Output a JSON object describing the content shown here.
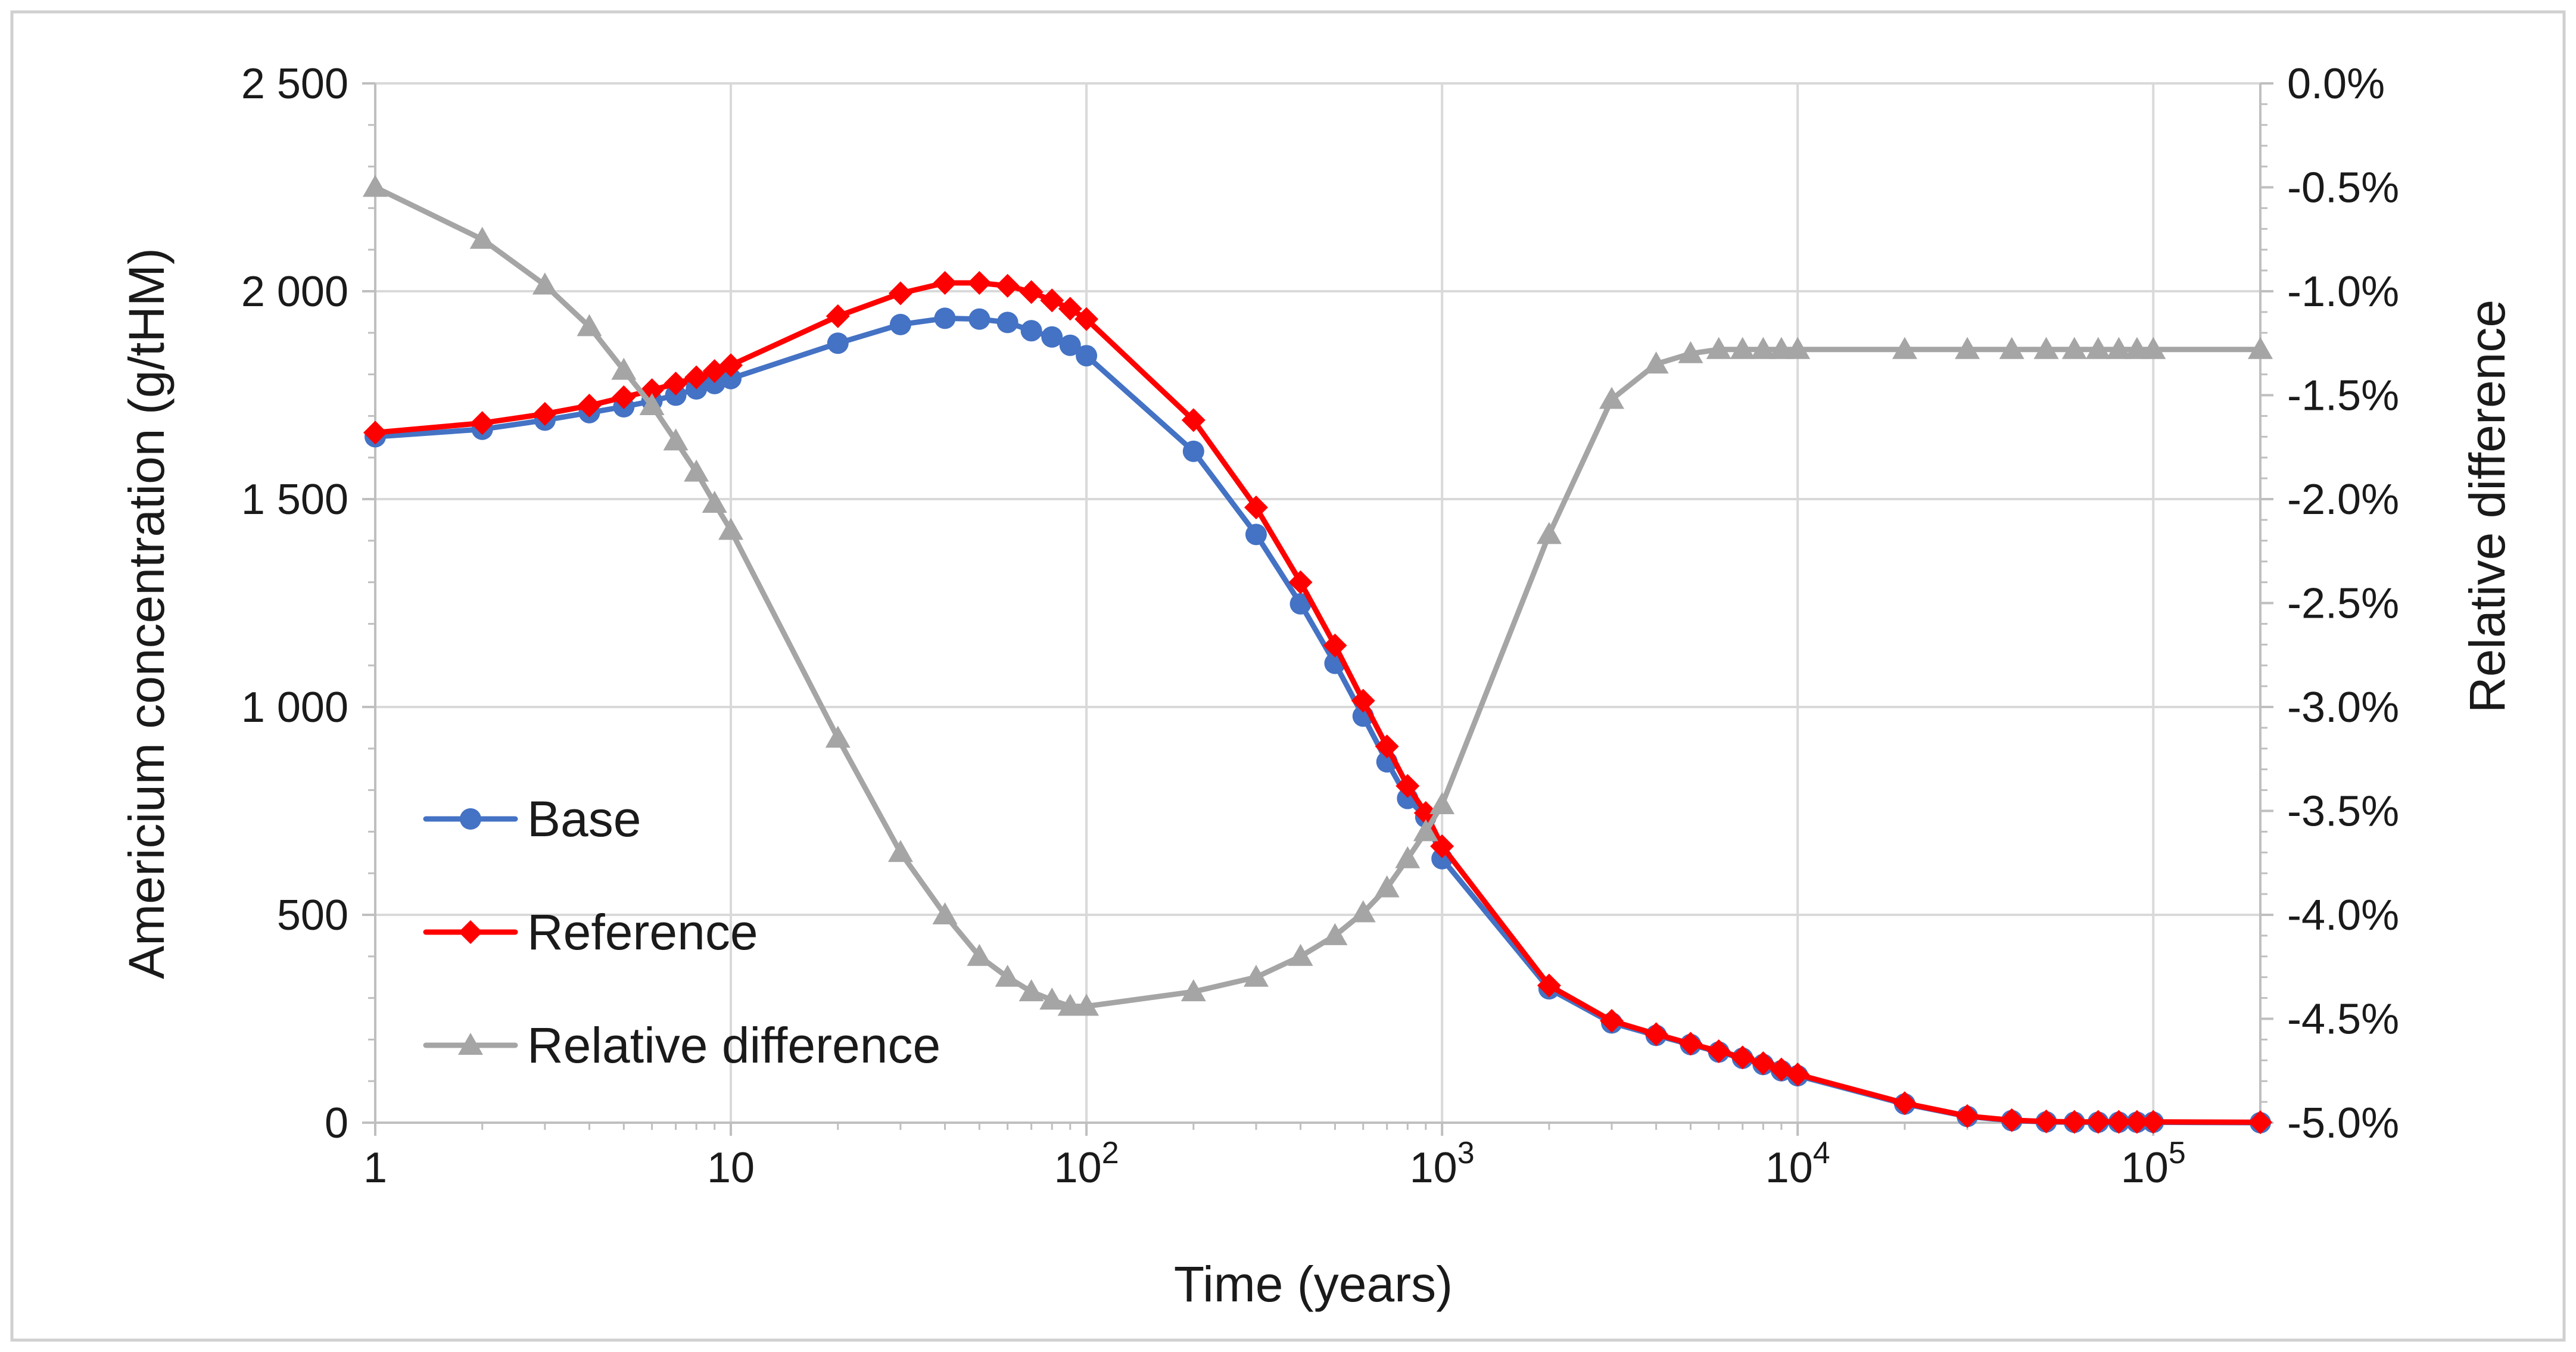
{
  "chart_data": {
    "type": "line",
    "title": "",
    "xlabel": "Time (years)",
    "ylabel": "Americium concentration (g/tHM)",
    "y2label": "Relative difference",
    "xscale": "log",
    "xlim": [
      1,
      200000
    ],
    "ylim": [
      0,
      2500
    ],
    "y2lim": [
      -5.0,
      0.0
    ],
    "grid": "major vertical and horizontal",
    "legend_position": "left-center",
    "x_ticks": [
      {
        "value": 1,
        "base": "1",
        "exp": ""
      },
      {
        "value": 10,
        "base": "10",
        "exp": ""
      },
      {
        "value": 100,
        "base": "10",
        "exp": "2"
      },
      {
        "value": 1000,
        "base": "10",
        "exp": "3"
      },
      {
        "value": 10000,
        "base": "10",
        "exp": "4"
      },
      {
        "value": 100000,
        "base": "10",
        "exp": "5"
      }
    ],
    "y_ticks": [
      {
        "value": 0,
        "label": "0"
      },
      {
        "value": 500,
        "label": "500"
      },
      {
        "value": 1000,
        "label": "1 000"
      },
      {
        "value": 1500,
        "label": "1 500"
      },
      {
        "value": 2000,
        "label": "2 000"
      },
      {
        "value": 2500,
        "label": "2 500"
      }
    ],
    "y2_ticks": [
      {
        "value": 0.0,
        "label": "0.0%"
      },
      {
        "value": -0.5,
        "label": "-0.5%"
      },
      {
        "value": -1.0,
        "label": "-1.0%"
      },
      {
        "value": -1.5,
        "label": "-1.5%"
      },
      {
        "value": -2.0,
        "label": "-2.0%"
      },
      {
        "value": -2.5,
        "label": "-2.5%"
      },
      {
        "value": -3.0,
        "label": "-3.0%"
      },
      {
        "value": -3.5,
        "label": "-3.5%"
      },
      {
        "value": -4.0,
        "label": "-4.0%"
      },
      {
        "value": -4.5,
        "label": "-4.5%"
      },
      {
        "value": -5.0,
        "label": "-5.0%"
      }
    ],
    "series": [
      {
        "name": "Base",
        "axis": "left",
        "color": "#4472C4",
        "marker": "circle",
        "x": [
          1,
          2,
          3,
          4,
          5,
          6,
          7,
          8,
          9,
          10,
          20,
          30,
          40,
          50,
          60,
          70,
          80,
          90,
          100,
          200,
          300,
          400,
          500,
          600,
          700,
          800,
          900,
          1000,
          2000,
          3000,
          4000,
          5000,
          6000,
          7000,
          8000,
          9000,
          10000,
          20000,
          30000,
          40000,
          50000,
          60000,
          70000,
          80000,
          90000,
          100000,
          200000
        ],
        "values": [
          1650,
          1668,
          1690,
          1708,
          1722,
          1736,
          1750,
          1765,
          1778,
          1790,
          1875,
          1920,
          1935,
          1933,
          1925,
          1905,
          1890,
          1870,
          1845,
          1615,
          1415,
          1248,
          1105,
          978,
          868,
          780,
          735,
          635,
          322,
          240,
          210,
          188,
          170,
          155,
          140,
          125,
          113,
          45,
          15,
          5,
          2,
          1,
          1,
          1,
          1,
          1,
          0
        ]
      },
      {
        "name": "Reference",
        "axis": "left",
        "color": "#FF0000",
        "marker": "diamond",
        "x": [
          1,
          2,
          3,
          4,
          5,
          6,
          7,
          8,
          9,
          10,
          20,
          30,
          40,
          50,
          60,
          70,
          80,
          90,
          100,
          200,
          300,
          400,
          500,
          600,
          700,
          800,
          900,
          1000,
          2000,
          3000,
          4000,
          5000,
          6000,
          7000,
          8000,
          9000,
          10000,
          20000,
          30000,
          40000,
          50000,
          60000,
          70000,
          80000,
          90000,
          100000,
          200000
        ],
        "values": [
          1660,
          1683,
          1705,
          1725,
          1745,
          1762,
          1778,
          1793,
          1808,
          1822,
          1940,
          1995,
          2020,
          2020,
          2013,
          1998,
          1978,
          1958,
          1933,
          1690,
          1480,
          1300,
          1148,
          1015,
          905,
          810,
          745,
          665,
          330,
          245,
          213,
          190,
          172,
          157,
          143,
          128,
          116,
          47,
          16,
          6,
          3,
          2,
          2,
          2,
          2,
          2,
          1
        ]
      },
      {
        "name": "Relative difference",
        "axis": "right",
        "color": "#A5A5A5",
        "marker": "triangle",
        "x": [
          1,
          2,
          3,
          4,
          5,
          6,
          7,
          8,
          9,
          10,
          20,
          30,
          40,
          50,
          60,
          70,
          80,
          90,
          100,
          200,
          300,
          400,
          500,
          600,
          700,
          800,
          900,
          1000,
          2000,
          3000,
          4000,
          5000,
          6000,
          7000,
          8000,
          9000,
          10000,
          20000,
          30000,
          40000,
          50000,
          60000,
          70000,
          80000,
          90000,
          100000,
          200000
        ],
        "values": [
          -0.5,
          -0.75,
          -0.97,
          -1.17,
          -1.38,
          -1.55,
          -1.72,
          -1.87,
          -2.02,
          -2.15,
          -3.15,
          -3.7,
          -4.0,
          -4.2,
          -4.3,
          -4.37,
          -4.41,
          -4.44,
          -4.44,
          -4.37,
          -4.3,
          -4.2,
          -4.1,
          -3.99,
          -3.87,
          -3.73,
          -3.6,
          -3.47,
          -2.17,
          -1.52,
          -1.35,
          -1.3,
          -1.28,
          -1.28,
          -1.28,
          -1.28,
          -1.28,
          -1.28,
          -1.28,
          -1.28,
          -1.28,
          -1.28,
          -1.28,
          -1.28,
          -1.28,
          -1.28,
          -1.28
        ]
      }
    ]
  }
}
